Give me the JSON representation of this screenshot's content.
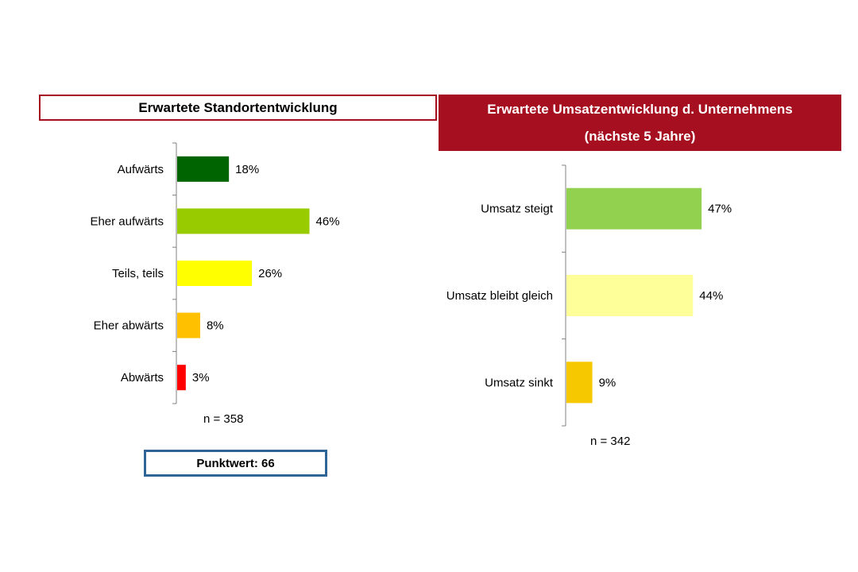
{
  "chart_data": [
    {
      "type": "bar",
      "orientation": "horizontal",
      "title": "Erwartete Standortentwicklung",
      "categories": [
        "Aufwärts",
        "Eher aufwärts",
        "Teils, teils",
        "Eher abwärts",
        "Abwärts"
      ],
      "values": [
        18,
        46,
        26,
        8,
        3
      ],
      "value_labels": [
        "18%",
        "46%",
        "26%",
        "8%",
        "3%"
      ],
      "colors": [
        "#006400",
        "#99cc00",
        "#ffff00",
        "#ffc000",
        "#ff0000"
      ],
      "xlim": [
        0,
        100
      ],
      "grid": false,
      "note": "n = 358",
      "score": "Punktwert: 66"
    },
    {
      "type": "bar",
      "orientation": "horizontal",
      "title_line1": "Erwartete Umsatzentwicklung d. Unternehmens",
      "title_line2": "(nächste 5 Jahre)",
      "categories": [
        "Umsatz steigt",
        "Umsatz bleibt gleich",
        "Umsatz sinkt"
      ],
      "values": [
        47,
        44,
        9
      ],
      "value_labels": [
        "47%",
        "44%",
        "9%"
      ],
      "colors": [
        "#92d050",
        "#ffff99",
        "#f5c800"
      ],
      "xlim": [
        0,
        100
      ],
      "grid": false,
      "note": "n = 342"
    }
  ]
}
